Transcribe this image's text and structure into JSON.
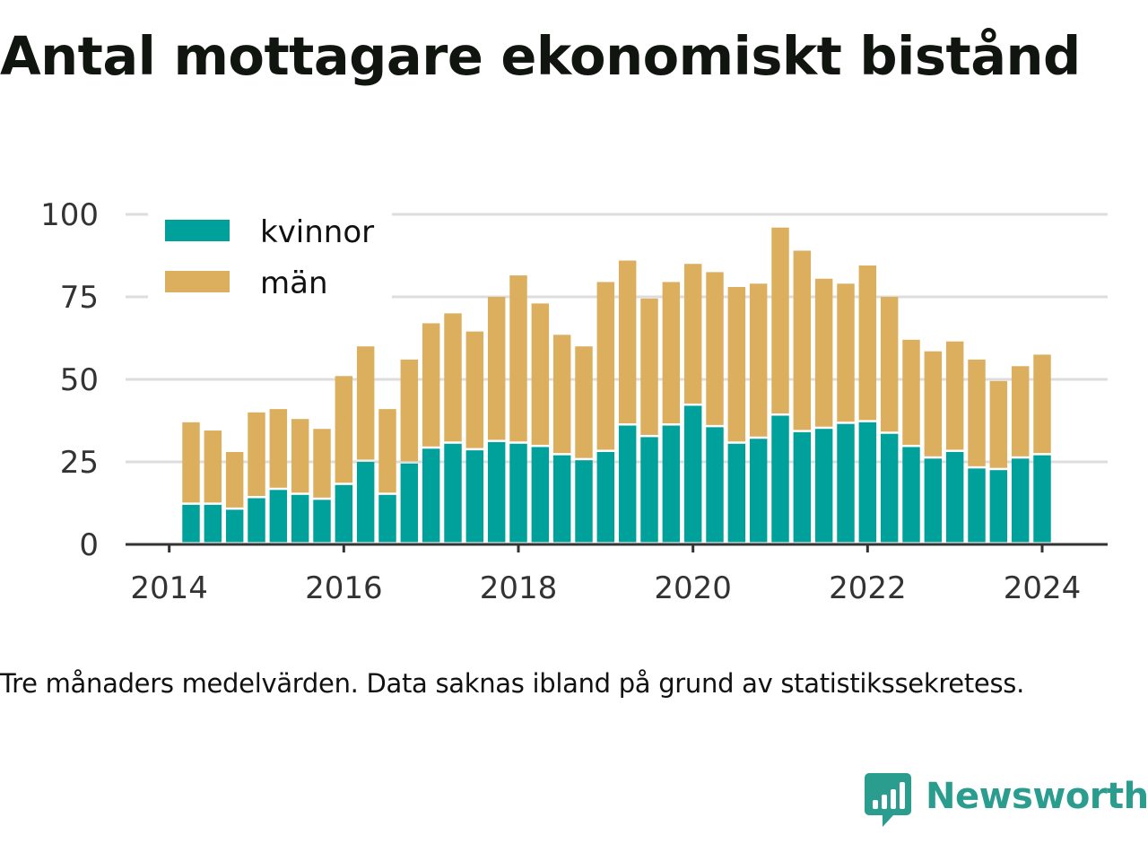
{
  "title": "Antal mottagare ekonomiskt bistånd",
  "caption": "Tre månaders medelvärden. Data saknas ibland på grund av statistikssekretess.",
  "brand": {
    "name": "Newsworthy",
    "icon": "newsworthy-logo-icon",
    "color": "#2a9d8f"
  },
  "chart_data": {
    "type": "bar",
    "stacked": true,
    "title": "Antal mottagare ekonomiskt bistånd",
    "xlabel": "",
    "ylabel": "",
    "xlim": [
      2013.5,
      2024.75
    ],
    "ylim": [
      0,
      100
    ],
    "yticks": [
      0,
      25,
      50,
      75,
      100
    ],
    "xticks": [
      2014,
      2016,
      2018,
      2020,
      2022,
      2024
    ],
    "grid": true,
    "legend_position": "top-left",
    "x": [
      2014.25,
      2014.5,
      2014.75,
      2015.0,
      2015.25,
      2015.5,
      2015.75,
      2016.0,
      2016.25,
      2016.5,
      2016.75,
      2017.0,
      2017.25,
      2017.5,
      2017.75,
      2018.0,
      2018.25,
      2018.5,
      2018.75,
      2019.0,
      2019.25,
      2019.5,
      2019.75,
      2020.0,
      2020.25,
      2020.5,
      2020.75,
      2021.0,
      2021.25,
      2021.5,
      2021.75,
      2022.0,
      2022.25,
      2022.5,
      2022.75,
      2023.0,
      2023.25,
      2023.5,
      2023.75,
      2024.0
    ],
    "series": [
      {
        "name": "kvinnor",
        "color": "#00a19a",
        "values": [
          12,
          12,
          10.5,
          14,
          16.5,
          15,
          13.5,
          18,
          25,
          15,
          24.5,
          29,
          30.5,
          28.5,
          31,
          30.5,
          29.5,
          27,
          25.5,
          28,
          36,
          32.5,
          36,
          42,
          35.5,
          30.5,
          32,
          39,
          34,
          35,
          36.5,
          37,
          33.5,
          29.5,
          26,
          28,
          23,
          22.5,
          26,
          27
        ]
      },
      {
        "name": "män",
        "color": "#dcaf5f",
        "values": [
          25,
          22.5,
          17.5,
          26,
          24.5,
          23,
          21.5,
          33,
          35,
          26,
          31.5,
          38,
          39.5,
          36,
          44,
          51,
          43.5,
          36.5,
          34.5,
          51.5,
          50,
          42,
          43.5,
          43,
          47,
          47.5,
          47,
          57,
          55,
          45.5,
          42.5,
          47.5,
          41.5,
          32.5,
          32.5,
          33.5,
          33,
          27,
          28,
          30.5
        ]
      }
    ]
  }
}
